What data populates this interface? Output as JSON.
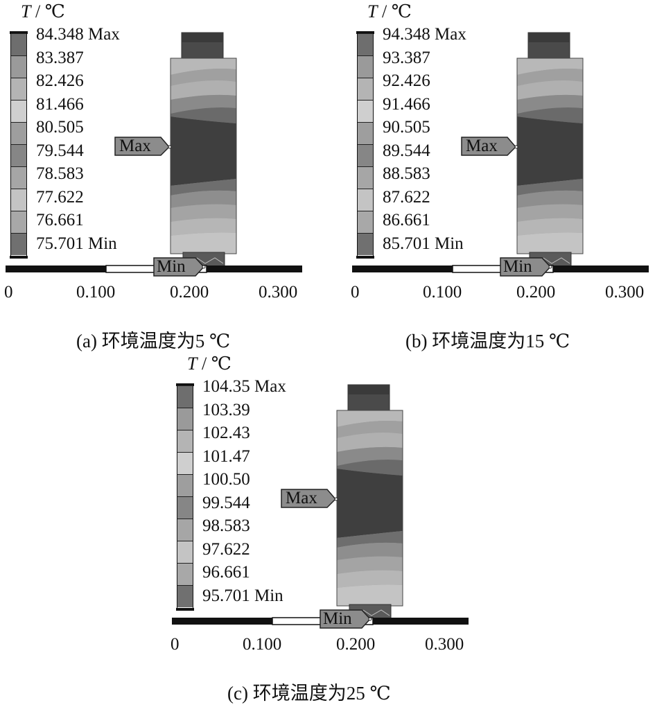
{
  "panels": [
    {
      "unit_symbol": "T",
      "unit_rest": " / ℃",
      "legend": [
        "84.348 Max",
        "83.387",
        "82.426",
        "81.466",
        "80.505",
        "79.544",
        "78.583",
        "77.622",
        "76.661",
        "75.701 Min"
      ],
      "max_label": "Max",
      "min_label": "Min",
      "axis_ticks": [
        "0",
        "0.100",
        "0.200",
        "0.300"
      ],
      "caption": "(a)  环境温度为5 ℃"
    },
    {
      "unit_symbol": "T",
      "unit_rest": " / ℃",
      "legend": [
        "94.348 Max",
        "93.387",
        "92.426",
        "91.466",
        "90.505",
        "89.544",
        "88.583",
        "87.622",
        "86.661",
        "85.701 Min"
      ],
      "max_label": "Max",
      "min_label": "Min",
      "axis_ticks": [
        "0",
        "0.100",
        "0.200",
        "0.300"
      ],
      "caption": "(b)  环境温度为15 ℃"
    },
    {
      "unit_symbol": "T",
      "unit_rest": " / ℃",
      "legend": [
        "104.35 Max",
        "103.39",
        "102.43",
        "101.47",
        "100.50",
        "99.544",
        "98.583",
        "97.622",
        "96.661",
        "95.701 Min"
      ],
      "max_label": "Max",
      "min_label": "Min",
      "axis_ticks": [
        "0",
        "0.100",
        "0.200",
        "0.300"
      ],
      "caption": "(c)  环境温度为25 ℃"
    }
  ],
  "colors": {
    "legend_bands": [
      "#6e6e6e",
      "#9a9a9a",
      "#b4b4b4",
      "#cfcfcf",
      "#9e9e9e",
      "#868686",
      "#a6a6a6",
      "#c4c4c4",
      "#a8a8a8",
      "#707070"
    ],
    "shaft_dark": "#3a3a3a",
    "shaft_mid": "#6e6e6e",
    "shaft_light": "#a8a8a8",
    "callout": "#8c8c8c"
  }
}
